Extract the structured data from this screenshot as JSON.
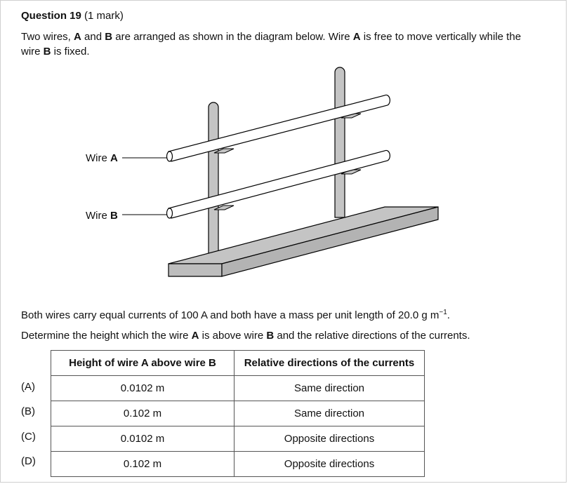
{
  "question": {
    "label": "Question 19",
    "marks": "(1 mark)",
    "intro": {
      "t1": "Two wires, ",
      "wire_a": "A",
      "t2": " and ",
      "wire_b": "B",
      "t3": " are arranged as shown in the diagram below. Wire ",
      "t4": " is free to move vertically while the wire ",
      "t5": " is fixed."
    }
  },
  "diagram": {
    "wire_a_label": "Wire ",
    "wire_a_bold": "A",
    "wire_b_label": "Wire ",
    "wire_b_bold": "B"
  },
  "info": {
    "text": "Both wires carry equal currents of 100 A and both have a mass per unit length of 20.0 g m",
    "exponent": "−1",
    "end": "."
  },
  "prompt": {
    "t1": "Determine the height which the wire ",
    "a": "A",
    "t2": " is above wire ",
    "b": "B",
    "t3": " and the relative directions of the currents."
  },
  "table": {
    "headers": [
      "Height of wire A above wire B",
      "Relative directions of the currents"
    ],
    "rows": [
      {
        "option": "(A)",
        "height": "0.0102 m",
        "direction": "Same direction"
      },
      {
        "option": "(B)",
        "height": "0.102 m",
        "direction": "Same direction"
      },
      {
        "option": "(C)",
        "height": "0.0102 m",
        "direction": "Opposite directions"
      },
      {
        "option": "(D)",
        "height": "0.102 m",
        "direction": "Opposite directions"
      }
    ]
  }
}
